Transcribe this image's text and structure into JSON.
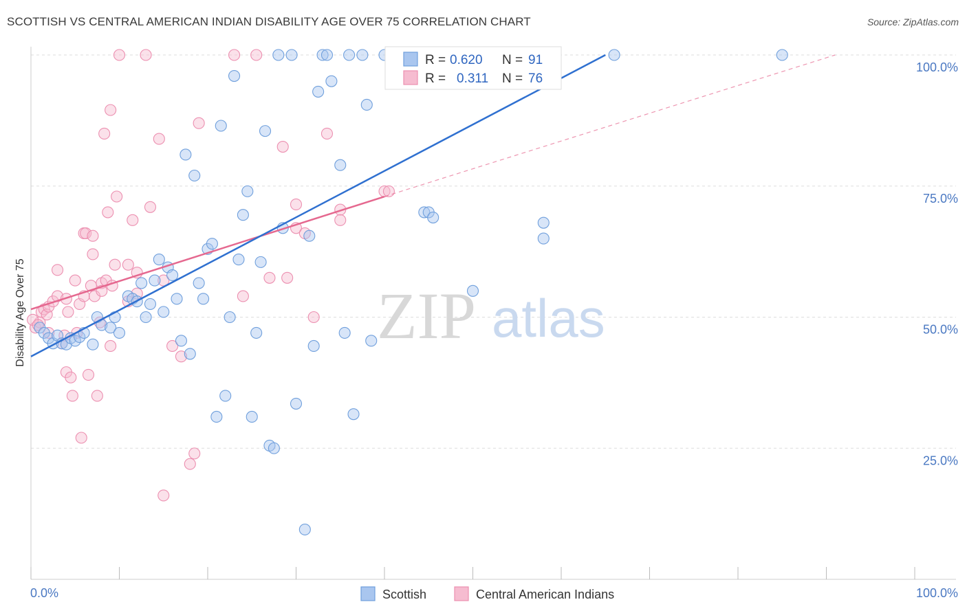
{
  "title": "SCOTTISH VS CENTRAL AMERICAN INDIAN DISABILITY AGE OVER 75 CORRELATION CHART",
  "source": "Source: ZipAtlas.com",
  "watermark": {
    "zip": "ZIP",
    "atlas": "atlas"
  },
  "colors": {
    "scottish_fill": "#a9c6ef",
    "scottish_stroke": "#6f9fdc",
    "scottish_line": "#2f70d0",
    "cai_fill": "#f6bcd0",
    "cai_stroke": "#ec8fb0",
    "cai_line": "#e5688f",
    "tick": "#4a78c2",
    "grid": "#dddddd"
  },
  "legend": {
    "r_label": "R =",
    "n_label": "N =",
    "scottish": {
      "r": "0.620",
      "n": "91"
    },
    "cai": {
      "r": "0.311",
      "n": "76"
    }
  },
  "chart_data": {
    "type": "scatter",
    "title": "SCOTTISH VS CENTRAL AMERICAN INDIAN DISABILITY AGE OVER 75 CORRELATION CHART",
    "xlabel": "",
    "ylabel": "Disability Age Over 75",
    "xlim": [
      0,
      100
    ],
    "ylim": [
      0,
      100
    ],
    "x_tick_labels": [
      "0.0%",
      "100.0%"
    ],
    "y_ticks": [
      25,
      50,
      75,
      100
    ],
    "y_tick_labels": [
      "25.0%",
      "50.0%",
      "75.0%",
      "100.0%"
    ],
    "grid": true,
    "legend_position": "top-center",
    "series": [
      {
        "name": "Scottish",
        "r": 0.62,
        "n": 91,
        "trend": {
          "x": [
            0,
            65
          ],
          "y": [
            42.5,
            100
          ]
        },
        "points": [
          [
            1,
            48
          ],
          [
            1.5,
            47
          ],
          [
            2,
            46
          ],
          [
            2.5,
            45
          ],
          [
            3,
            46.5
          ],
          [
            3.5,
            45
          ],
          [
            4,
            44.8
          ],
          [
            4.5,
            46
          ],
          [
            5,
            45.5
          ],
          [
            5.5,
            46.2
          ],
          [
            6,
            47
          ],
          [
            7,
            44.8
          ],
          [
            7.5,
            50
          ],
          [
            8,
            48.5
          ],
          [
            9,
            48
          ],
          [
            9.5,
            50
          ],
          [
            10,
            47
          ],
          [
            11,
            54
          ],
          [
            11.5,
            53.5
          ],
          [
            12,
            53
          ],
          [
            12.5,
            56.5
          ],
          [
            13,
            50
          ],
          [
            13.5,
            52.5
          ],
          [
            14,
            57
          ],
          [
            14.5,
            61
          ],
          [
            15,
            51
          ],
          [
            15.5,
            59.5
          ],
          [
            16,
            58
          ],
          [
            16.5,
            53.5
          ],
          [
            17,
            45.5
          ],
          [
            17.5,
            81
          ],
          [
            18,
            43
          ],
          [
            18.5,
            77
          ],
          [
            19,
            56.5
          ],
          [
            19.5,
            53.5
          ],
          [
            20,
            63
          ],
          [
            20.5,
            64
          ],
          [
            21,
            31
          ],
          [
            21.5,
            86.5
          ],
          [
            22,
            35
          ],
          [
            22.5,
            50
          ],
          [
            23,
            96
          ],
          [
            23.5,
            61
          ],
          [
            24,
            69.5
          ],
          [
            24.5,
            74
          ],
          [
            25,
            31
          ],
          [
            25.5,
            47
          ],
          [
            26,
            60.5
          ],
          [
            26.5,
            85.5
          ],
          [
            27,
            25.5
          ],
          [
            27.5,
            25
          ],
          [
            28,
            100
          ],
          [
            28.5,
            67
          ],
          [
            29.5,
            100
          ],
          [
            30,
            33.5
          ],
          [
            31,
            9.5
          ],
          [
            31.5,
            65.5
          ],
          [
            32,
            44.5
          ],
          [
            32.5,
            93
          ],
          [
            33,
            100
          ],
          [
            33.5,
            100
          ],
          [
            34,
            95
          ],
          [
            35,
            79
          ],
          [
            35.5,
            47
          ],
          [
            36,
            100
          ],
          [
            36.5,
            31.5
          ],
          [
            37.5,
            100
          ],
          [
            38,
            90.5
          ],
          [
            38.5,
            45.5
          ],
          [
            41,
            100
          ],
          [
            44,
            100
          ],
          [
            48,
            100
          ],
          [
            40,
            100
          ],
          [
            45,
            100
          ],
          [
            46,
            100
          ],
          [
            47,
            100
          ],
          [
            49,
            100
          ],
          [
            51,
            100
          ],
          [
            42,
            100
          ],
          [
            43,
            100
          ],
          [
            44.5,
            70
          ],
          [
            45,
            70
          ],
          [
            45.5,
            69
          ],
          [
            50,
            55
          ],
          [
            52,
            100
          ],
          [
            55.5,
            100
          ],
          [
            58,
            68
          ],
          [
            58,
            65
          ],
          [
            66,
            100
          ],
          [
            85,
            100
          ]
        ]
      },
      {
        "name": "Central American Indians",
        "r": 0.311,
        "n": 76,
        "trend": {
          "x": [
            0,
            40
          ],
          "y": [
            51.5,
            73
          ]
        },
        "trend_dashed": {
          "x": [
            40,
            91
          ],
          "y": [
            73,
            100
          ]
        },
        "points": [
          [
            0.5,
            48
          ],
          [
            1,
            49
          ],
          [
            1.2,
            51
          ],
          [
            1.5,
            51.5
          ],
          [
            1.8,
            50.5
          ],
          [
            2,
            52
          ],
          [
            2,
            47
          ],
          [
            2.5,
            53
          ],
          [
            3,
            54
          ],
          [
            3,
            59
          ],
          [
            3.5,
            45
          ],
          [
            3.8,
            46.5
          ],
          [
            4,
            53.5
          ],
          [
            4,
            39.5
          ],
          [
            4.2,
            51
          ],
          [
            4.5,
            38.5
          ],
          [
            4.7,
            35
          ],
          [
            5,
            57
          ],
          [
            5.2,
            47
          ],
          [
            5.5,
            52.5
          ],
          [
            5.7,
            27
          ],
          [
            6,
            54
          ],
          [
            6,
            66
          ],
          [
            6.2,
            66
          ],
          [
            6.5,
            39
          ],
          [
            6.8,
            56
          ],
          [
            7,
            65.5
          ],
          [
            7,
            62
          ],
          [
            7.2,
            54
          ],
          [
            7.5,
            35
          ],
          [
            7.8,
            49
          ],
          [
            8,
            56.5
          ],
          [
            8,
            55
          ],
          [
            8.3,
            85
          ],
          [
            8.5,
            57
          ],
          [
            8.7,
            70
          ],
          [
            9,
            89.5
          ],
          [
            9,
            44.5
          ],
          [
            9.2,
            56
          ],
          [
            9.5,
            60
          ],
          [
            9.7,
            73
          ],
          [
            10,
            100
          ],
          [
            11,
            60
          ],
          [
            11,
            53
          ],
          [
            11.5,
            68.5
          ],
          [
            12,
            58.5
          ],
          [
            12,
            54.5
          ],
          [
            13,
            100
          ],
          [
            13.5,
            71
          ],
          [
            14.5,
            84
          ],
          [
            15,
            57
          ],
          [
            15,
            16
          ],
          [
            16,
            44.5
          ],
          [
            17,
            42.5
          ],
          [
            18,
            22
          ],
          [
            18.5,
            24
          ],
          [
            19,
            87
          ],
          [
            23,
            100
          ],
          [
            24,
            54
          ],
          [
            25.5,
            100
          ],
          [
            27,
            57.5
          ],
          [
            28.5,
            82.5
          ],
          [
            29,
            57.5
          ],
          [
            30,
            71.5
          ],
          [
            30,
            67
          ],
          [
            31,
            66
          ],
          [
            32,
            50
          ],
          [
            33.5,
            85
          ],
          [
            35,
            70.5
          ],
          [
            35,
            68.5
          ],
          [
            40,
            74
          ],
          [
            40.5,
            74
          ],
          [
            42,
            100
          ],
          [
            52,
            100
          ],
          [
            0.2,
            49.5
          ],
          [
            0.8,
            48.5
          ]
        ]
      }
    ]
  }
}
